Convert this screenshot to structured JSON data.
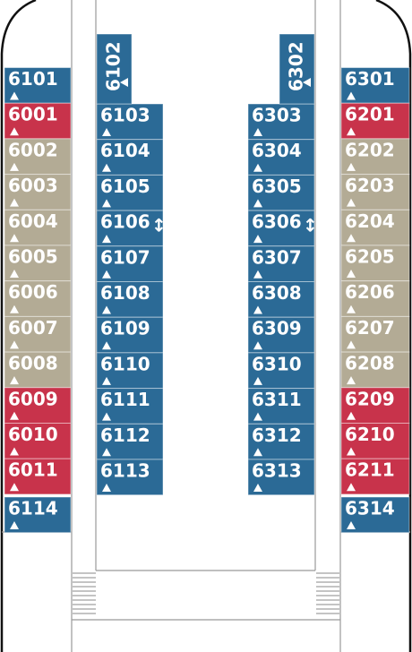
{
  "decks": [
    {
      "cabins": [
        {
          "label": "6101",
          "color": "#2b6a96"
        },
        {
          "label": "6001",
          "color": "#c8334b"
        },
        {
          "label": "6002",
          "color": "#b3ab95"
        },
        {
          "label": "6003",
          "color": "#b3ab95"
        },
        {
          "label": "6004",
          "color": "#b3ab95"
        },
        {
          "label": "6005",
          "color": "#b3ab95"
        },
        {
          "label": "6006",
          "color": "#b3ab95"
        },
        {
          "label": "6007",
          "color": "#b3ab95"
        },
        {
          "label": "6008",
          "color": "#b3ab95"
        },
        {
          "label": "6009",
          "color": "#c8334b"
        },
        {
          "label": "6010",
          "color": "#c8334b"
        },
        {
          "label": "6011",
          "color": "#c8334b"
        }
      ],
      "bottom": {
        "label": "6114",
        "color": "#2b6a96"
      }
    },
    {
      "rotated": {
        "label": "6102",
        "color": "#2b6a96"
      },
      "cabins": [
        {
          "label": "6103",
          "color": "#2b6a96"
        },
        {
          "label": "6104",
          "color": "#2b6a96"
        },
        {
          "label": "6105",
          "color": "#2b6a96"
        },
        {
          "label": "6106",
          "color": "#2b6a96"
        },
        {
          "label": "6107",
          "color": "#2b6a96"
        },
        {
          "label": "6108",
          "color": "#2b6a96"
        },
        {
          "label": "6109",
          "color": "#2b6a96"
        },
        {
          "label": "6110",
          "color": "#2b6a96"
        },
        {
          "label": "6111",
          "color": "#2b6a96"
        },
        {
          "label": "6112",
          "color": "#2b6a96"
        },
        {
          "label": "6113",
          "color": "#2b6a96"
        }
      ]
    },
    {
      "rotated": {
        "label": "6302",
        "color": "#2b6a96"
      },
      "cabins": [
        {
          "label": "6303",
          "color": "#2b6a96"
        },
        {
          "label": "6304",
          "color": "#2b6a96"
        },
        {
          "label": "6305",
          "color": "#2b6a96"
        },
        {
          "label": "6306",
          "color": "#2b6a96"
        },
        {
          "label": "6307",
          "color": "#2b6a96"
        },
        {
          "label": "6308",
          "color": "#2b6a96"
        },
        {
          "label": "6309",
          "color": "#2b6a96"
        },
        {
          "label": "6310",
          "color": "#2b6a96"
        },
        {
          "label": "6311",
          "color": "#2b6a96"
        },
        {
          "label": "6312",
          "color": "#2b6a96"
        },
        {
          "label": "6313",
          "color": "#2b6a96"
        }
      ]
    },
    {
      "cabins": [
        {
          "label": "6301",
          "color": "#2b6a96"
        },
        {
          "label": "6201",
          "color": "#c8334b"
        },
        {
          "label": "6202",
          "color": "#b3ab95"
        },
        {
          "label": "6203",
          "color": "#b3ab95"
        },
        {
          "label": "6204",
          "color": "#b3ab95"
        },
        {
          "label": "6205",
          "color": "#b3ab95"
        },
        {
          "label": "6206",
          "color": "#b3ab95"
        },
        {
          "label": "6207",
          "color": "#b3ab95"
        },
        {
          "label": "6208",
          "color": "#b3ab95"
        },
        {
          "label": "6209",
          "color": "#c8334b"
        },
        {
          "label": "6210",
          "color": "#c8334b"
        },
        {
          "label": "6211",
          "color": "#c8334b"
        }
      ],
      "bottom": {
        "label": "6314",
        "color": "#2b6a96"
      }
    }
  ]
}
